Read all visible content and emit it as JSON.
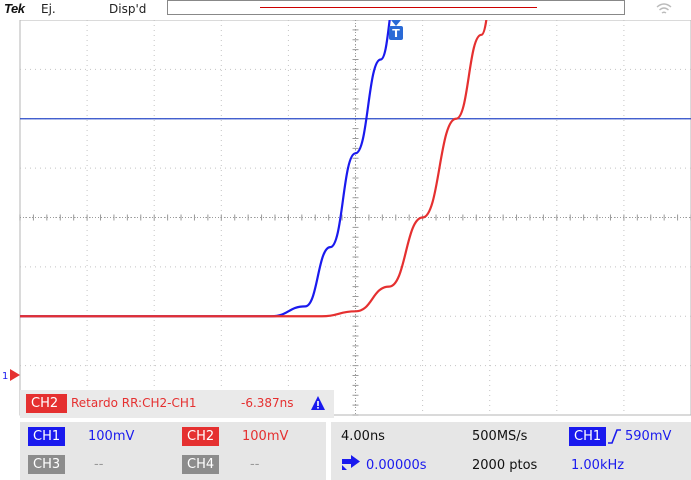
{
  "header": {
    "brand": "Tek",
    "mode": "Ej.",
    "trigger_status": "Disp'd"
  },
  "measurement": {
    "channel": "CH2",
    "label": "Retardo RR:CH2-CH1",
    "value": "-6.387ns",
    "warning_icon": "warning-triangle-icon"
  },
  "channels": [
    {
      "name": "CH1",
      "scale": "100mV",
      "color": "#1a1aee"
    },
    {
      "name": "CH2",
      "scale": "100mV",
      "color": "#e53030"
    },
    {
      "name": "CH3",
      "scale": "--",
      "color": "#8c8c8c"
    },
    {
      "name": "CH4",
      "scale": "--",
      "color": "#8c8c8c"
    }
  ],
  "horizontal": {
    "time_per_div": "4.00ns",
    "sample_rate": "500MS/s",
    "delay": "0.00000s",
    "record_length": "2000 ptos"
  },
  "trigger": {
    "source": "CH1",
    "slope_icon": "rising-edge-icon",
    "level": "590mV",
    "frequency": "1.00kHz",
    "marker": "T",
    "ground_marker": "1"
  },
  "waveform_data": {
    "x_unit": "ns",
    "x_range": [
      -20,
      20
    ],
    "divisions_x": 10,
    "divisions_y": 8,
    "trigger_level_div": 2.0,
    "series": [
      {
        "name": "CH1",
        "color": "#1a1aee",
        "x": [
          -20,
          -5,
          -3,
          -1.5,
          0,
          1.5,
          2.5,
          3.5
        ],
        "y_div": [
          -2.0,
          -2.0,
          -1.8,
          -0.6,
          1.3,
          3.2,
          4.6,
          5.6
        ]
      },
      {
        "name": "CH2",
        "color": "#e53030",
        "x": [
          -20,
          -2,
          0,
          2,
          4,
          6,
          7.5,
          8.5
        ],
        "y_div": [
          -2.0,
          -2.0,
          -1.9,
          -1.4,
          0.0,
          2.0,
          3.7,
          5.6
        ]
      }
    ]
  }
}
